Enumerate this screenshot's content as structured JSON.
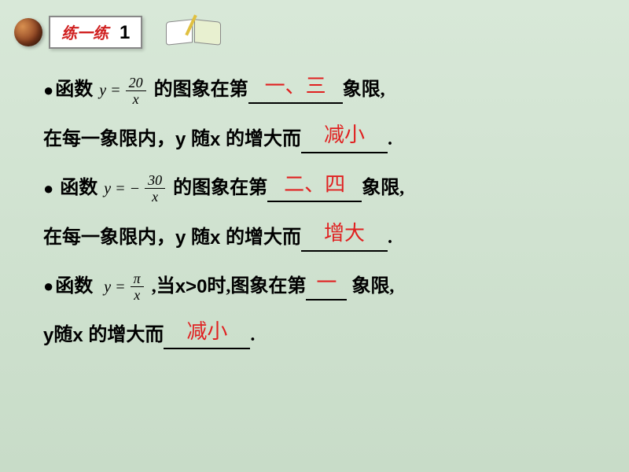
{
  "header": {
    "title": "练一练",
    "number": "1"
  },
  "problems": [
    {
      "prefix": "函数",
      "eq_lhs": "y =",
      "numerator": "20",
      "denominator": "x",
      "neg": false,
      "mid": "的图象在第",
      "answer1": "一、三",
      "suffix1": "象限,",
      "line2_a": "在每一象限内，",
      "line2_b": "随",
      "line2_c": "的增大而",
      "answer2": "减小",
      "period": "."
    },
    {
      "prefix": "函数",
      "eq_lhs": "y = −",
      "numerator": "30",
      "denominator": "x",
      "neg": true,
      "mid": "的图象在第",
      "answer1": "二、四",
      "suffix1": "象限,",
      "line2_a": "在每一象限内，",
      "line2_b": "随",
      "line2_c": "的增大而",
      "answer2": "增大",
      "period": "."
    },
    {
      "prefix": "函数",
      "eq_lhs": "y =",
      "numerator": "π",
      "denominator": "x",
      "neg": false,
      "mid": ",当",
      "condition": "x>0",
      "mid2": "时,图象在第",
      "answer1": "一",
      "suffix1": "象限,",
      "line2_a": "",
      "line2_b": "随",
      "line2_c": "的增大而",
      "answer2": "减小",
      "period": "."
    }
  ],
  "colors": {
    "answer": "#e02020",
    "text": "#000000",
    "bg_top": "#d8e8d8",
    "bg_bottom": "#c8dcc8",
    "title": "#d02020"
  },
  "fonts": {
    "body_size": 24,
    "answer_size": 26,
    "title_size": 20,
    "formula_size": 18
  }
}
